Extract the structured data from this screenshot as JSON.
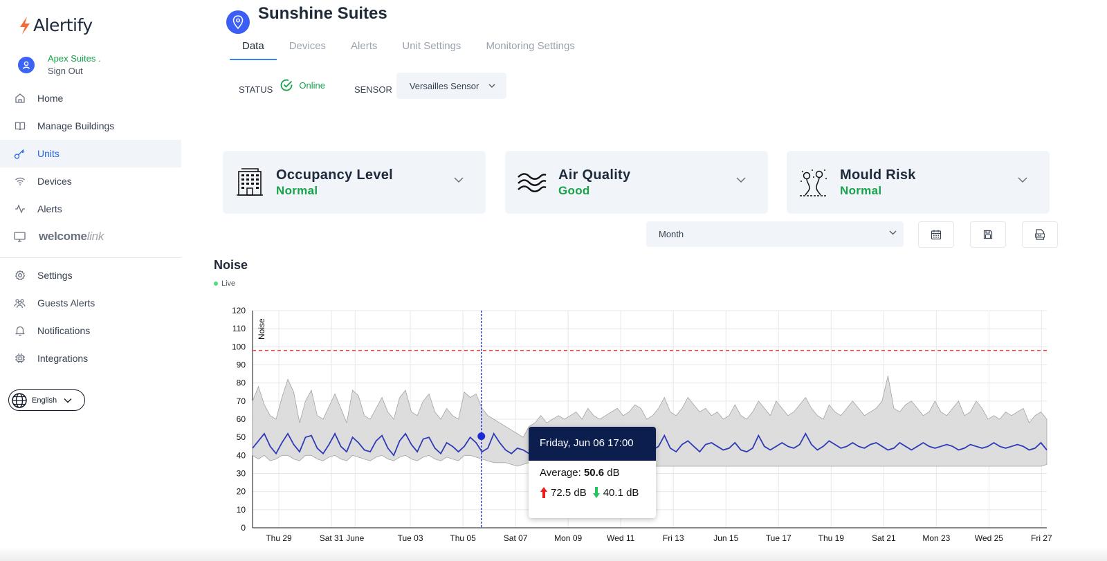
{
  "app": {
    "name": "Alertify"
  },
  "user": {
    "name": "Apex Suites .",
    "signout": "Sign Out"
  },
  "nav": {
    "home": "Home",
    "manage_buildings": "Manage Buildings",
    "units": "Units",
    "devices": "Devices",
    "alerts": "Alerts",
    "welcome_a": "welcome",
    "welcome_b": "link",
    "settings": "Settings",
    "guests_alerts": "Guests Alerts",
    "notifications": "Notifications",
    "integrations": "Integrations"
  },
  "language": "English",
  "page": {
    "title": "Sunshine Suites"
  },
  "tabs": [
    "Data",
    "Devices",
    "Alerts",
    "Unit Settings",
    "Monitoring Settings"
  ],
  "status": {
    "label": "STATUS",
    "value": "Online"
  },
  "sensor": {
    "label": "SENSOR",
    "value": "Versailles Sensor"
  },
  "cards": [
    {
      "title": "Occupancy Level",
      "value": "Normal",
      "icon": "building-icon"
    },
    {
      "title": "Air Quality",
      "value": "Good",
      "icon": "wind-waves-icon"
    },
    {
      "title": "Mould Risk",
      "value": "Normal",
      "icon": "mould-spores-icon"
    }
  ],
  "period": {
    "value": "Month"
  },
  "tools": [
    "calendar-icon",
    "save-icon",
    "csv-export-icon"
  ],
  "chart_section": {
    "title": "Noise",
    "live": "Live"
  },
  "colors": {
    "accent": "#3b5ef5",
    "good": "#16a34a",
    "line": "#2f3ab6",
    "threshold": "#ef4444",
    "band": "#d9d9d9"
  },
  "tooltip": {
    "date": "Friday, Jun 06 17:00",
    "avg_label": "Average: ",
    "avg_value": "50.6",
    "unit": " dB",
    "max": "72.5 dB",
    "min": "40.1 dB"
  },
  "chart_data": {
    "type": "area",
    "ylabel": "Noise",
    "ylim": [
      0,
      120
    ],
    "yticks": [
      0,
      10,
      20,
      30,
      40,
      50,
      60,
      70,
      80,
      90,
      100,
      110,
      120
    ],
    "threshold": 98,
    "x_labels": [
      "Thu 29",
      "Sat 31",
      "June",
      "Tue 03",
      "Thu 05",
      "Sat 07",
      "Mon 09",
      "Wed 11",
      "Fri 13",
      "Jun 15",
      "Tue 17",
      "Thu 19",
      "Sat 21",
      "Mon 23",
      "Wed 25",
      "Fri 27"
    ],
    "x_label_days": [
      1,
      3,
      3.9,
      6,
      8,
      10,
      12,
      14,
      16,
      18,
      20,
      22,
      24,
      26,
      28,
      30
    ],
    "x_range_days": [
      0,
      30.2
    ],
    "highlight_day": 8.7,
    "series": [
      {
        "name": "Average",
        "values": [
          44,
          48,
          52,
          45,
          41,
          47,
          52,
          46,
          42,
          50,
          51,
          44,
          41,
          46,
          52,
          45,
          42,
          50,
          47,
          43,
          42,
          48,
          51,
          44,
          40,
          48,
          52,
          46,
          42,
          49,
          50,
          44,
          41,
          47,
          45,
          42,
          45,
          50,
          47,
          42,
          44,
          52,
          47,
          43,
          41,
          44,
          43,
          41,
          43,
          45,
          44,
          42,
          41,
          44,
          45,
          43,
          41,
          45,
          47,
          44,
          42,
          44,
          46,
          43,
          41,
          45,
          47,
          44,
          43,
          45,
          51,
          44,
          42,
          46,
          48,
          45,
          42,
          46,
          47,
          45,
          43,
          44,
          47,
          43,
          42,
          44,
          51,
          45,
          43,
          45,
          47,
          45,
          44,
          46,
          52,
          46,
          43,
          45,
          48,
          46,
          44,
          45,
          47,
          45,
          44,
          46,
          47,
          45,
          43,
          44,
          47,
          45,
          43,
          45,
          47,
          45,
          44,
          45,
          46,
          45,
          43,
          44,
          46,
          45,
          44,
          45,
          47,
          45,
          44,
          45,
          46,
          45,
          43,
          44,
          47,
          43
        ]
      },
      {
        "name": "Max",
        "values": [
          70,
          78,
          68,
          62,
          60,
          72,
          82,
          75,
          58,
          70,
          76,
          62,
          60,
          67,
          74,
          66,
          58,
          76,
          73,
          62,
          60,
          66,
          72,
          64,
          60,
          72,
          76,
          64,
          62,
          70,
          74,
          64,
          60,
          66,
          62,
          60,
          75,
          72,
          74,
          66,
          62,
          60,
          58,
          56,
          54,
          52,
          50,
          56,
          58,
          62,
          58,
          60,
          62,
          60,
          62,
          64,
          60,
          66,
          62,
          60,
          62,
          64,
          66,
          62,
          64,
          68,
          66,
          60,
          62,
          66,
          72,
          64,
          62,
          66,
          72,
          68,
          64,
          66,
          62,
          64,
          60,
          62,
          68,
          62,
          60,
          64,
          70,
          66,
          62,
          70,
          66,
          62,
          64,
          68,
          72,
          66,
          62,
          60,
          68,
          64,
          62,
          66,
          70,
          66,
          62,
          64,
          66,
          70,
          84,
          66,
          64,
          68,
          70,
          66,
          62,
          64,
          70,
          64,
          62,
          66,
          70,
          62,
          64,
          70,
          66,
          60,
          62,
          60,
          64,
          62,
          64,
          66,
          58,
          62,
          64,
          60
        ]
      },
      {
        "name": "Min",
        "values": [
          40,
          38,
          40,
          37,
          38,
          40,
          40,
          38,
          37,
          40,
          40,
          38,
          37,
          39,
          40,
          38,
          37,
          40,
          39,
          38,
          37,
          39,
          40,
          38,
          37,
          39,
          40,
          38,
          37,
          39,
          40,
          38,
          37,
          39,
          38,
          37,
          40,
          40,
          39,
          38,
          37,
          36,
          36,
          36,
          35,
          34,
          35,
          36,
          35,
          34,
          35,
          36,
          35,
          34,
          35,
          34,
          35,
          34,
          35,
          34,
          35,
          34,
          34,
          34,
          34,
          34,
          34,
          34,
          34,
          34,
          34,
          34,
          34,
          34,
          34,
          34,
          34,
          34,
          34,
          34,
          34,
          34,
          34,
          34,
          34,
          34,
          34,
          34,
          34,
          34,
          34,
          34,
          34,
          34,
          34,
          34,
          34,
          34,
          34,
          34,
          34,
          34,
          34,
          34,
          34,
          34,
          34,
          34,
          34,
          34,
          34,
          34,
          34,
          34,
          34,
          34,
          34,
          34,
          34,
          34,
          34,
          34,
          34,
          34,
          34,
          34,
          34,
          34,
          34,
          34,
          34,
          34,
          34,
          34,
          34,
          35
        ]
      }
    ]
  }
}
